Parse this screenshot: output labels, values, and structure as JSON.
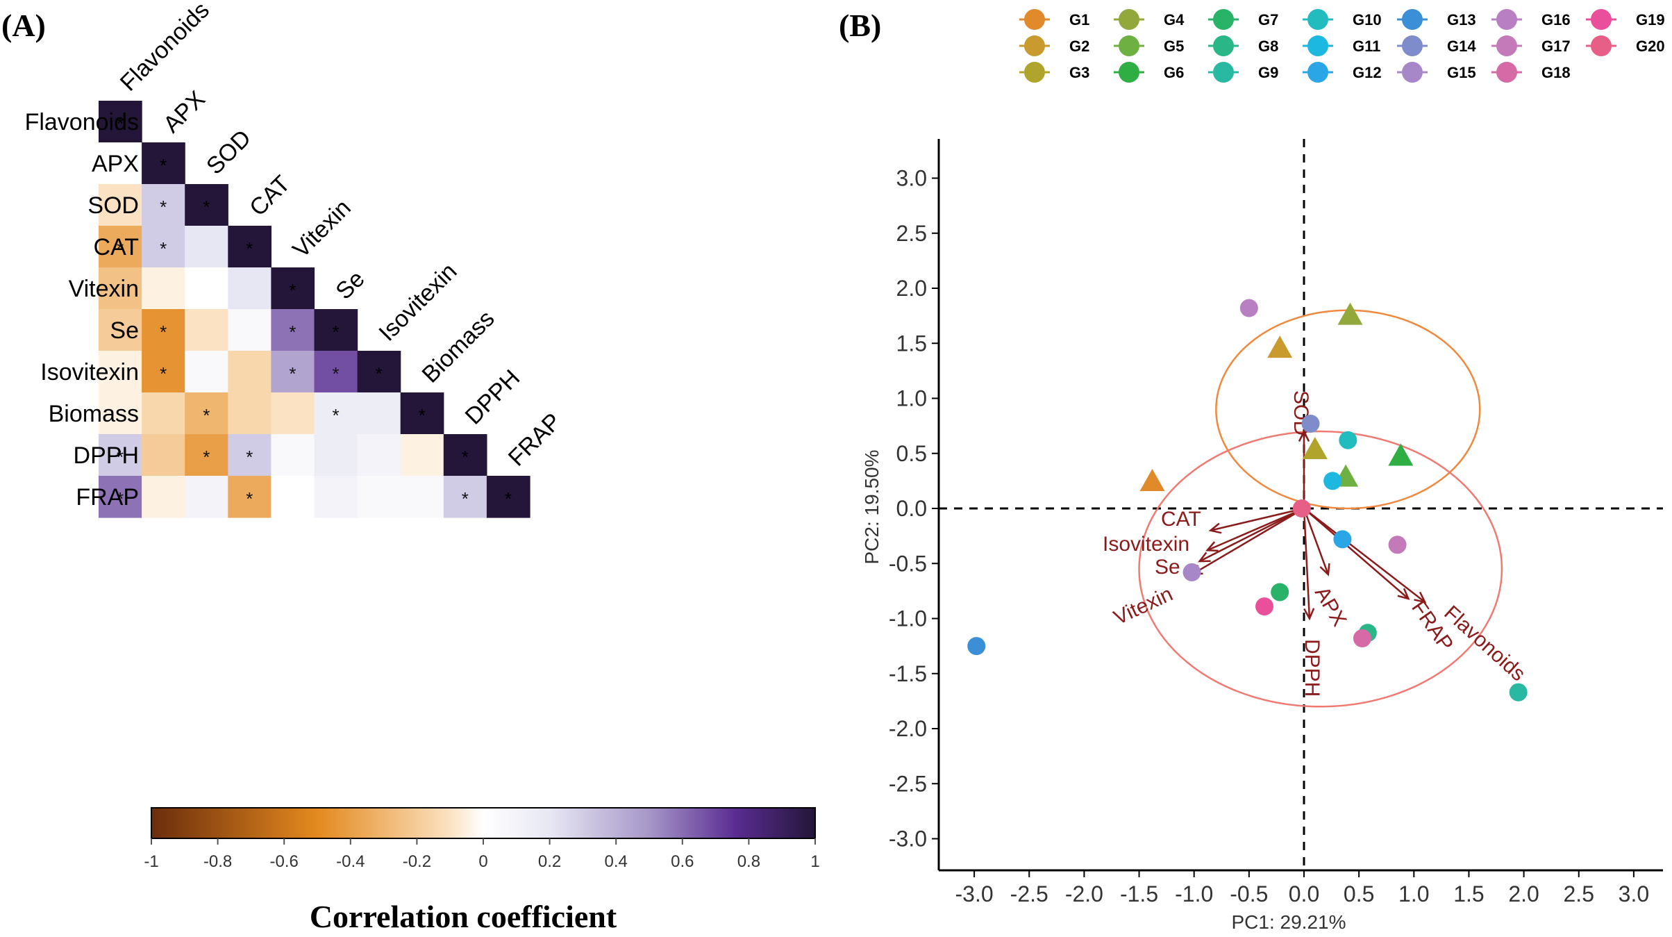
{
  "panel_a": {
    "label": "(A)",
    "colorbar_title": "Correlation coefficient",
    "colorbar_ticks": [
      "-1",
      "-0.8",
      "-0.6",
      "-0.4",
      "-0.2",
      "0",
      "0.2",
      "0.4",
      "0.6",
      "0.8",
      "1"
    ]
  },
  "panel_b": {
    "label": "(B)",
    "xlabel": "PC1: 29.21%",
    "ylabel": "PC2: 19.50%",
    "legend": [
      {
        "label": "G1",
        "color": "#e08a2c"
      },
      {
        "label": "G2",
        "color": "#c99a2e"
      },
      {
        "label": "G3",
        "color": "#b0a42c"
      },
      {
        "label": "G4",
        "color": "#92a83a"
      },
      {
        "label": "G5",
        "color": "#6fb043"
      },
      {
        "label": "G6",
        "color": "#2eae43"
      },
      {
        "label": "G7",
        "color": "#28b368"
      },
      {
        "label": "G8",
        "color": "#2ab686"
      },
      {
        "label": "G9",
        "color": "#29b9a3"
      },
      {
        "label": "G10",
        "color": "#22bcbf"
      },
      {
        "label": "G11",
        "color": "#1cb8e0"
      },
      {
        "label": "G12",
        "color": "#2aa6e6"
      },
      {
        "label": "G13",
        "color": "#3a8fd6"
      },
      {
        "label": "G14",
        "color": "#7f8ccc"
      },
      {
        "label": "G15",
        "color": "#a787c8"
      },
      {
        "label": "G16",
        "color": "#b87fc2"
      },
      {
        "label": "G17",
        "color": "#c47ab8"
      },
      {
        "label": "G18",
        "color": "#d66aa6"
      },
      {
        "label": "G19",
        "color": "#ea4f9c"
      },
      {
        "label": "G20",
        "color": "#e75f86"
      }
    ]
  },
  "chart_data": [
    {
      "type": "heatmap",
      "title": "",
      "variables": [
        "Flavonoids",
        "APX",
        "SOD",
        "CAT",
        "Vitexin",
        "Se",
        "Isovitexin",
        "Biomass",
        "DPPH",
        "FRAP"
      ],
      "lower_triangle": [
        [
          1.0
        ],
        [
          0.0,
          1.0
        ],
        [
          -0.1,
          0.3,
          1.0
        ],
        [
          -0.35,
          0.3,
          0.2,
          1.0
        ],
        [
          -0.25,
          -0.05,
          0.0,
          0.2,
          1.0
        ],
        [
          -0.2,
          -0.45,
          -0.1,
          0.05,
          0.6,
          1.0
        ],
        [
          -0.05,
          -0.45,
          0.05,
          -0.15,
          0.45,
          0.7,
          1.0
        ],
        [
          -0.05,
          -0.15,
          -0.3,
          -0.15,
          -0.1,
          0.15,
          0.15,
          1.0
        ],
        [
          0.3,
          -0.2,
          -0.4,
          0.3,
          0.05,
          0.15,
          0.1,
          -0.05,
          1.0
        ],
        [
          0.6,
          -0.05,
          0.1,
          -0.35,
          0.0,
          0.1,
          0.05,
          0.05,
          0.3,
          1.0
        ]
      ],
      "significant": [
        [
          0,
          0
        ],
        [
          1,
          1
        ],
        [
          2,
          1
        ],
        [
          2,
          2
        ],
        [
          3,
          0
        ],
        [
          3,
          1
        ],
        [
          3,
          3
        ],
        [
          4,
          4
        ],
        [
          5,
          1
        ],
        [
          5,
          4
        ],
        [
          5,
          5
        ],
        [
          6,
          1
        ],
        [
          6,
          4
        ],
        [
          6,
          5
        ],
        [
          6,
          6
        ],
        [
          7,
          2
        ],
        [
          7,
          5
        ],
        [
          7,
          7
        ],
        [
          8,
          0
        ],
        [
          8,
          2
        ],
        [
          8,
          3
        ],
        [
          8,
          8
        ],
        [
          9,
          0
        ],
        [
          9,
          3
        ],
        [
          9,
          8
        ],
        [
          9,
          9
        ]
      ],
      "colorbar_range": [
        -1,
        1
      ]
    },
    {
      "type": "scatter",
      "title": "",
      "xlabel": "PC1: 29.21%",
      "ylabel": "PC2: 19.50%",
      "xlim": [
        -3.3,
        3.3
      ],
      "ylim": [
        -3.25,
        3.25
      ],
      "x_ticks": [
        -3.0,
        -2.5,
        -2.0,
        -1.5,
        -1.0,
        -0.5,
        0.0,
        0.5,
        1.0,
        1.5,
        2.0,
        2.5,
        3.0
      ],
      "y_ticks": [
        3.0,
        2.5,
        2.0,
        1.5,
        1.0,
        0.5,
        0.0,
        -0.5,
        -1.0,
        -1.5,
        -2.0,
        -2.5,
        -3.0
      ],
      "points": [
        {
          "group": "G1",
          "shape": "triangle",
          "x": -1.38,
          "y": 0.24
        },
        {
          "group": "G2",
          "shape": "triangle",
          "x": -0.22,
          "y": 1.45
        },
        {
          "group": "G3",
          "shape": "triangle",
          "x": 0.1,
          "y": 0.53
        },
        {
          "group": "G4",
          "shape": "triangle",
          "x": 0.42,
          "y": 1.75
        },
        {
          "group": "G5",
          "shape": "triangle",
          "x": 0.38,
          "y": 0.28
        },
        {
          "group": "G6",
          "shape": "triangle",
          "x": 0.88,
          "y": 0.47
        },
        {
          "group": "G7",
          "shape": "circle",
          "x": -0.22,
          "y": -0.76
        },
        {
          "group": "G8",
          "shape": "circle",
          "x": 0.58,
          "y": -1.13
        },
        {
          "group": "G9",
          "shape": "circle",
          "x": 1.95,
          "y": -1.67
        },
        {
          "group": "G10",
          "shape": "circle",
          "x": 0.4,
          "y": 0.62
        },
        {
          "group": "G11",
          "shape": "circle",
          "x": 0.26,
          "y": 0.25
        },
        {
          "group": "G12",
          "shape": "circle",
          "x": 0.35,
          "y": -0.28
        },
        {
          "group": "G13",
          "shape": "circle",
          "x": -2.98,
          "y": -1.25
        },
        {
          "group": "G14",
          "shape": "circle",
          "x": 0.06,
          "y": 0.77
        },
        {
          "group": "G15",
          "shape": "circle",
          "x": -1.02,
          "y": -0.58
        },
        {
          "group": "G16",
          "shape": "circle",
          "x": -0.5,
          "y": 1.82
        },
        {
          "group": "G17",
          "shape": "circle",
          "x": 0.85,
          "y": -0.33
        },
        {
          "group": "G18",
          "shape": "circle",
          "x": 0.53,
          "y": -1.18
        },
        {
          "group": "G19",
          "shape": "circle",
          "x": -0.36,
          "y": -0.89
        },
        {
          "group": "G20",
          "shape": "circle",
          "x": -0.02,
          "y": 0.0
        }
      ],
      "loadings": [
        {
          "label": "SOD",
          "x": 0.0,
          "y": 0.7
        },
        {
          "label": "CAT",
          "x": -0.85,
          "y": -0.2
        },
        {
          "label": "Isovitexin",
          "x": -0.88,
          "y": -0.38
        },
        {
          "label": "Se",
          "x": -0.95,
          "y": -0.48
        },
        {
          "label": "Vitexin",
          "x": -1.02,
          "y": -0.6
        },
        {
          "label": "APX",
          "x": 0.22,
          "y": -0.6
        },
        {
          "label": "DPPH",
          "x": 0.05,
          "y": -1.0
        },
        {
          "label": "FRAP",
          "x": 0.95,
          "y": -0.82
        },
        {
          "label": "Flavonoids",
          "x": 1.1,
          "y": -0.85
        }
      ],
      "ellipses": [
        {
          "color": "#f0883e",
          "center": [
            0.4,
            0.9
          ],
          "radii": [
            1.2,
            0.9
          ]
        },
        {
          "color": "#f07a72",
          "center": [
            0.15,
            -0.55
          ],
          "radii": [
            1.65,
            1.25
          ]
        }
      ]
    }
  ]
}
